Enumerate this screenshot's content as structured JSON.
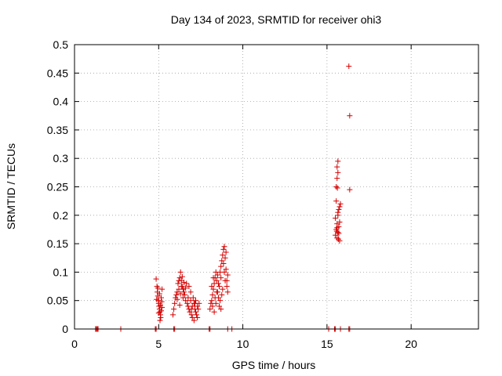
{
  "chart_data": {
    "type": "scatter",
    "title": "Day 134 of 2023, SRMTID for receiver ohi3",
    "xlabel": "GPS time / hours",
    "ylabel": "SRMTID / TECUs",
    "xlim": [
      0,
      24
    ],
    "ylim": [
      0,
      0.5
    ],
    "grid": true,
    "marker": "+",
    "color": "#d40000",
    "x_ticks": [
      0,
      5,
      10,
      15,
      20
    ],
    "x_tick_labels": [
      "0",
      "5",
      "10",
      "15",
      "20"
    ],
    "y_ticks": [
      0,
      0.05,
      0.1,
      0.15,
      0.2,
      0.25,
      0.3,
      0.35,
      0.4,
      0.45,
      0.5
    ],
    "y_tick_labels": [
      "0",
      "0.05",
      "0.1",
      "0.15",
      "0.2",
      "0.25",
      "0.3",
      "0.35",
      "0.4",
      "0.45",
      "0.5"
    ],
    "series": [
      {
        "name": "SRMTID",
        "points": [
          [
            1.25,
            0
          ],
          [
            1.3,
            0
          ],
          [
            1.35,
            0
          ],
          [
            1.4,
            0
          ],
          [
            2.75,
            0
          ],
          [
            4.8,
            0
          ],
          [
            4.85,
            0
          ],
          [
            5.9,
            0
          ],
          [
            5.95,
            0
          ],
          [
            8.0,
            0
          ],
          [
            8.05,
            0
          ],
          [
            9.1,
            0
          ],
          [
            9.35,
            0
          ],
          [
            15.1,
            0
          ],
          [
            15.45,
            0
          ],
          [
            15.5,
            0
          ],
          [
            15.8,
            0
          ],
          [
            16.3,
            0
          ],
          [
            16.35,
            0
          ],
          [
            4.85,
            0.088
          ],
          [
            4.9,
            0.075
          ],
          [
            4.92,
            0.065
          ],
          [
            4.95,
            0.058
          ],
          [
            4.98,
            0.05
          ],
          [
            5.0,
            0.045
          ],
          [
            5.02,
            0.04
          ],
          [
            5.05,
            0.035
          ],
          [
            5.07,
            0.03
          ],
          [
            5.1,
            0.025
          ],
          [
            5.12,
            0.02
          ],
          [
            5.15,
            0.055
          ],
          [
            5.18,
            0.048
          ],
          [
            5.2,
            0.07
          ],
          [
            4.95,
            0.072
          ],
          [
            5.05,
            0.062
          ],
          [
            5.1,
            0.042
          ],
          [
            5.15,
            0.032
          ],
          [
            4.88,
            0.052
          ],
          [
            5.0,
            0.028
          ],
          [
            5.2,
            0.038
          ],
          [
            5.08,
            0.015
          ],
          [
            5.85,
            0.025
          ],
          [
            5.9,
            0.035
          ],
          [
            5.95,
            0.045
          ],
          [
            6.0,
            0.055
          ],
          [
            6.05,
            0.06
          ],
          [
            6.1,
            0.065
          ],
          [
            6.15,
            0.08
          ],
          [
            6.2,
            0.085
          ],
          [
            6.25,
            0.09
          ],
          [
            6.3,
            0.1
          ],
          [
            6.35,
            0.085
          ],
          [
            6.4,
            0.075
          ],
          [
            6.45,
            0.07
          ],
          [
            6.5,
            0.065
          ],
          [
            6.55,
            0.06
          ],
          [
            6.6,
            0.05
          ],
          [
            6.65,
            0.08
          ],
          [
            6.2,
            0.07
          ],
          [
            6.3,
            0.062
          ],
          [
            6.4,
            0.092
          ],
          [
            6.1,
            0.052
          ],
          [
            6.5,
            0.082
          ],
          [
            6.25,
            0.042
          ],
          [
            6.6,
            0.072
          ],
          [
            6.35,
            0.075
          ],
          [
            6.45,
            0.055
          ],
          [
            6.7,
            0.045
          ],
          [
            6.75,
            0.04
          ],
          [
            6.8,
            0.035
          ],
          [
            6.85,
            0.03
          ],
          [
            6.9,
            0.05
          ],
          [
            6.95,
            0.025
          ],
          [
            7.0,
            0.02
          ],
          [
            7.05,
            0.055
          ],
          [
            7.1,
            0.045
          ],
          [
            7.15,
            0.035
          ],
          [
            7.2,
            0.03
          ],
          [
            7.25,
            0.025
          ],
          [
            7.3,
            0.04
          ],
          [
            7.35,
            0.035
          ],
          [
            7.4,
            0.045
          ],
          [
            6.8,
            0.075
          ],
          [
            6.9,
            0.065
          ],
          [
            7.0,
            0.04
          ],
          [
            7.1,
            0.015
          ],
          [
            7.2,
            0.05
          ],
          [
            7.3,
            0.02
          ],
          [
            6.75,
            0.055
          ],
          [
            6.95,
            0.035
          ],
          [
            7.15,
            0.045
          ],
          [
            8.05,
            0.035
          ],
          [
            8.1,
            0.045
          ],
          [
            8.15,
            0.05
          ],
          [
            8.2,
            0.06
          ],
          [
            8.25,
            0.07
          ],
          [
            8.3,
            0.08
          ],
          [
            8.35,
            0.09
          ],
          [
            8.4,
            0.1
          ],
          [
            8.45,
            0.085
          ],
          [
            8.5,
            0.065
          ],
          [
            8.55,
            0.055
          ],
          [
            8.6,
            0.04
          ],
          [
            8.65,
            0.1
          ],
          [
            8.7,
            0.11
          ],
          [
            8.75,
            0.12
          ],
          [
            8.8,
            0.13
          ],
          [
            8.85,
            0.14
          ],
          [
            8.9,
            0.145
          ],
          [
            8.95,
            0.125
          ],
          [
            9.0,
            0.105
          ],
          [
            9.05,
            0.085
          ],
          [
            9.1,
            0.065
          ],
          [
            8.3,
            0.03
          ],
          [
            8.4,
            0.045
          ],
          [
            8.6,
            0.075
          ],
          [
            8.7,
            0.09
          ],
          [
            8.8,
            0.07
          ],
          [
            8.9,
            0.1
          ],
          [
            9.0,
            0.135
          ],
          [
            8.5,
            0.095
          ],
          [
            8.2,
            0.04
          ],
          [
            8.35,
            0.055
          ],
          [
            8.75,
            0.06
          ],
          [
            8.95,
            0.085
          ],
          [
            8.65,
            0.05
          ],
          [
            9.05,
            0.075
          ],
          [
            8.85,
            0.115
          ],
          [
            8.45,
            0.065
          ],
          [
            8.55,
            0.08
          ],
          [
            8.15,
            0.075
          ],
          [
            8.25,
            0.09
          ],
          [
            8.7,
            0.035
          ],
          [
            9.1,
            0.095
          ],
          [
            15.5,
            0.165
          ],
          [
            15.55,
            0.175
          ],
          [
            15.6,
            0.185
          ],
          [
            15.65,
            0.2
          ],
          [
            15.7,
            0.21
          ],
          [
            15.75,
            0.215
          ],
          [
            15.8,
            0.22
          ],
          [
            15.55,
            0.25
          ],
          [
            15.6,
            0.265
          ],
          [
            15.65,
            0.275
          ],
          [
            15.6,
            0.285
          ],
          [
            15.65,
            0.295
          ],
          [
            15.55,
            0.225
          ],
          [
            15.6,
            0.16
          ],
          [
            15.65,
            0.17
          ],
          [
            15.7,
            0.18
          ],
          [
            15.75,
            0.155
          ],
          [
            15.5,
            0.195
          ],
          [
            15.65,
            0.205
          ],
          [
            15.7,
            0.168
          ],
          [
            15.6,
            0.178
          ],
          [
            15.75,
            0.188
          ],
          [
            15.62,
            0.248
          ],
          [
            15.58,
            0.172
          ],
          [
            15.68,
            0.158
          ],
          [
            16.3,
            0.462
          ],
          [
            16.35,
            0.375
          ],
          [
            16.35,
            0.245
          ]
        ]
      }
    ]
  }
}
